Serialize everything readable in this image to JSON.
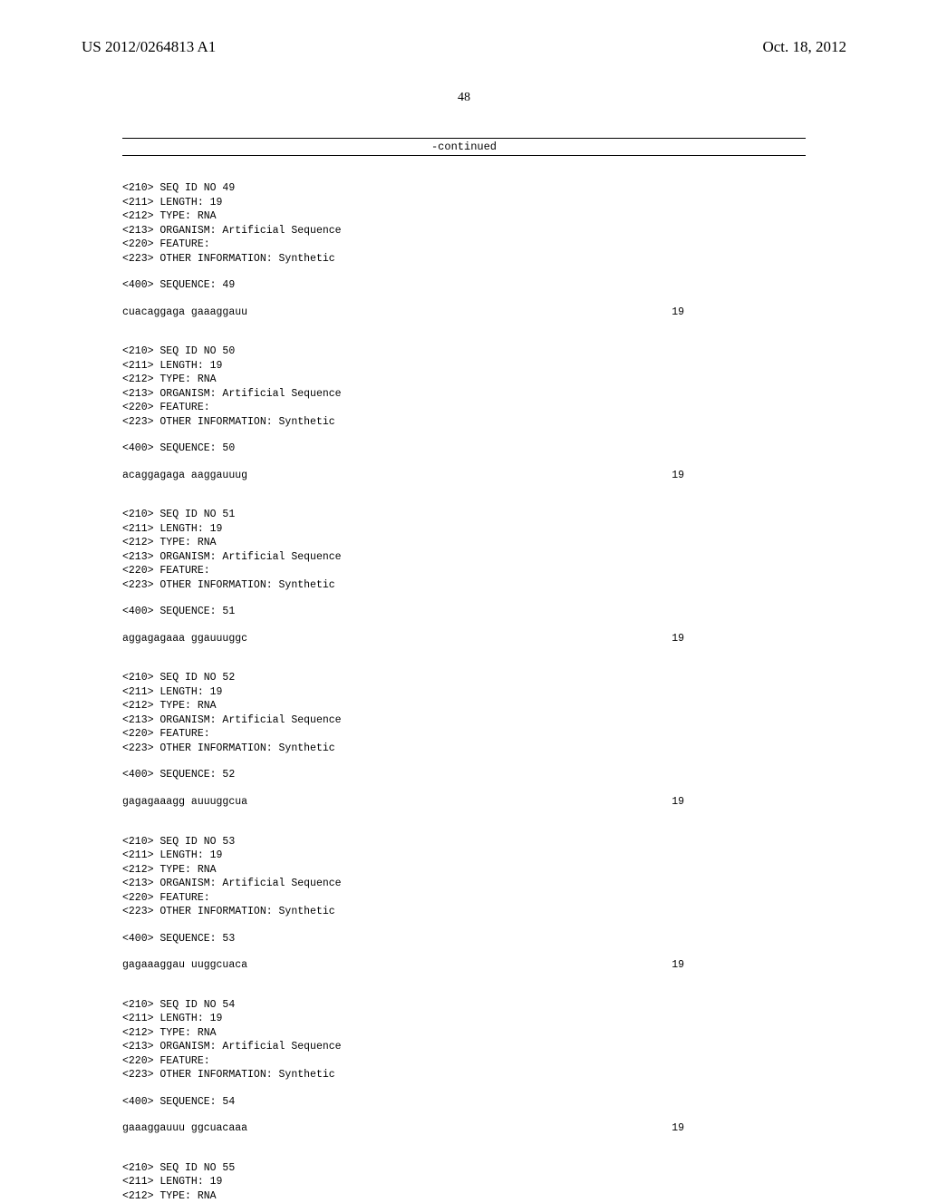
{
  "header": {
    "publication": "US 2012/0264813 A1",
    "date": "Oct. 18, 2012"
  },
  "page_number": "48",
  "continued_label": "-continued",
  "sequences": [
    {
      "id": "49",
      "length": "19",
      "type": "RNA",
      "organism": "Artificial Sequence",
      "other_info": "Synthetic",
      "seq_text": "cuacaggaga gaaaggauu",
      "seq_num": "19"
    },
    {
      "id": "50",
      "length": "19",
      "type": "RNA",
      "organism": "Artificial Sequence",
      "other_info": "Synthetic",
      "seq_text": "acaggagaga aaggauuug",
      "seq_num": "19"
    },
    {
      "id": "51",
      "length": "19",
      "type": "RNA",
      "organism": "Artificial Sequence",
      "other_info": "Synthetic",
      "seq_text": "aggagagaaa ggauuuggc",
      "seq_num": "19"
    },
    {
      "id": "52",
      "length": "19",
      "type": "RNA",
      "organism": "Artificial Sequence",
      "other_info": "Synthetic",
      "seq_text": "gagagaaagg auuuggcua",
      "seq_num": "19"
    },
    {
      "id": "53",
      "length": "19",
      "type": "RNA",
      "organism": "Artificial Sequence",
      "other_info": "Synthetic",
      "seq_text": "gagaaaggau uuggcuaca",
      "seq_num": "19"
    },
    {
      "id": "54",
      "length": "19",
      "type": "RNA",
      "organism": "Artificial Sequence",
      "other_info": "Synthetic",
      "seq_text": "gaaaggauuu ggcuacaaa",
      "seq_num": "19"
    }
  ],
  "partial_sequence": {
    "id": "55",
    "length": "19",
    "type": "RNA"
  },
  "labels": {
    "seq_id_prefix": "<210> SEQ ID NO ",
    "length_prefix": "<211> LENGTH: ",
    "type_prefix": "<212> TYPE: ",
    "organism_prefix": "<213> ORGANISM: ",
    "feature_prefix": "<220> FEATURE:",
    "other_info_prefix": "<223> OTHER INFORMATION: ",
    "sequence_prefix": "<400> SEQUENCE: "
  }
}
